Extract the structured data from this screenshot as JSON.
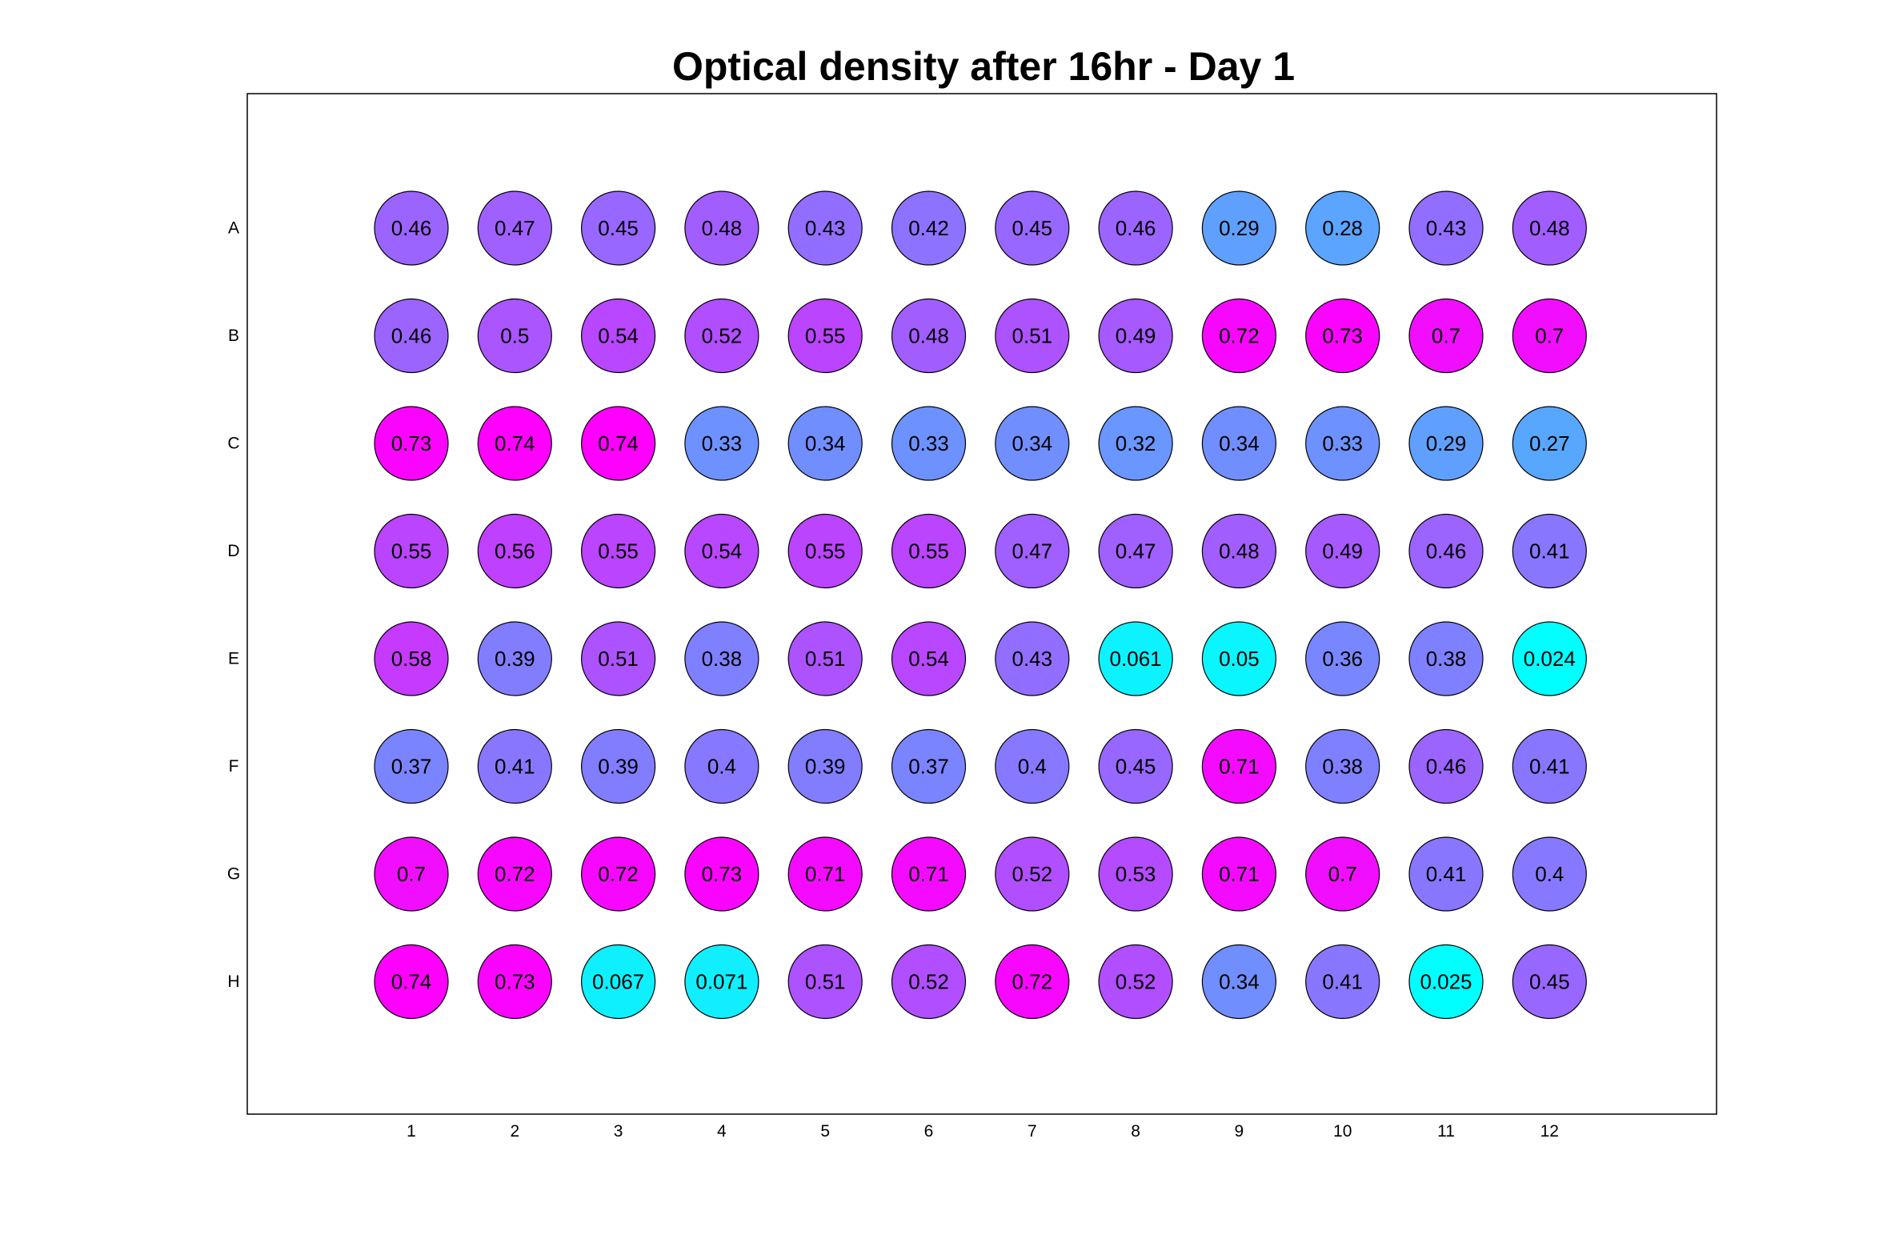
{
  "chart_data": {
    "type": "heatmap",
    "title": "Optical density after 16hr - Day 1",
    "columns": [
      "1",
      "2",
      "3",
      "4",
      "5",
      "6",
      "7",
      "8",
      "9",
      "10",
      "11",
      "12"
    ],
    "rows": [
      "A",
      "B",
      "C",
      "D",
      "E",
      "F",
      "G",
      "H"
    ],
    "values": [
      [
        "0.46",
        "0.47",
        "0.45",
        "0.48",
        "0.43",
        "0.42",
        "0.45",
        "0.46",
        "0.29",
        "0.28",
        "0.43",
        "0.48"
      ],
      [
        "0.46",
        "0.5",
        "0.54",
        "0.52",
        "0.55",
        "0.48",
        "0.51",
        "0.49",
        "0.72",
        "0.73",
        "0.7",
        "0.7"
      ],
      [
        "0.73",
        "0.74",
        "0.74",
        "0.33",
        "0.34",
        "0.33",
        "0.34",
        "0.32",
        "0.34",
        "0.33",
        "0.29",
        "0.27"
      ],
      [
        "0.55",
        "0.56",
        "0.55",
        "0.54",
        "0.55",
        "0.55",
        "0.47",
        "0.47",
        "0.48",
        "0.49",
        "0.46",
        "0.41"
      ],
      [
        "0.58",
        "0.39",
        "0.51",
        "0.38",
        "0.51",
        "0.54",
        "0.43",
        "0.061",
        "0.05",
        "0.36",
        "0.38",
        "0.024"
      ],
      [
        "0.37",
        "0.41",
        "0.39",
        "0.4",
        "0.39",
        "0.37",
        "0.4",
        "0.45",
        "0.71",
        "0.38",
        "0.46",
        "0.41"
      ],
      [
        "0.7",
        "0.72",
        "0.72",
        "0.73",
        "0.71",
        "0.71",
        "0.52",
        "0.53",
        "0.71",
        "0.7",
        "0.41",
        "0.4"
      ],
      [
        "0.74",
        "0.73",
        "0.067",
        "0.071",
        "0.51",
        "0.52",
        "0.72",
        "0.52",
        "0.34",
        "0.41",
        "0.025",
        "0.45"
      ]
    ],
    "colormap": "cool",
    "color_range": [
      0.024,
      0.74
    ],
    "colormap_low": "#00ffff",
    "colormap_high": "#ff00ff",
    "grid": false,
    "legend": "none"
  }
}
